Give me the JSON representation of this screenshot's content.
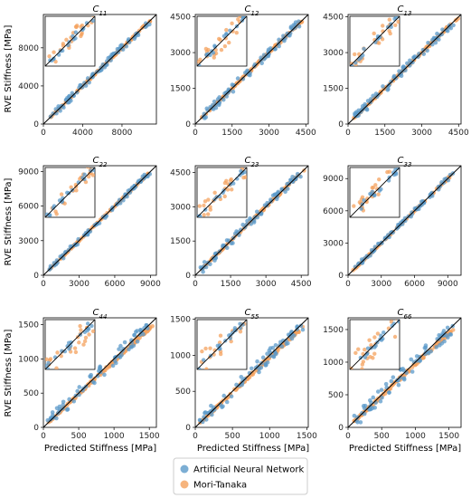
{
  "figure": {
    "ylabel": "RVE Stiffness [MPa]",
    "xlabel": "Predicted Stiffness [MPa]"
  },
  "legend": {
    "placement": "bottom-center",
    "entries": [
      {
        "label": "Artificial Neural Network",
        "color": "#5b9ac9"
      },
      {
        "label": "Mori-Tanaka",
        "color": "#f4a15d"
      }
    ]
  },
  "chart_data": [
    {
      "type": "scatter",
      "title": "C",
      "sub": "11",
      "lim": [
        0,
        11500
      ],
      "ticks": [
        0,
        4000,
        8000
      ],
      "series": [
        "Artificial Neural Network",
        "Mori-Tanaka"
      ],
      "inset": true
    },
    {
      "type": "scatter",
      "title": "C",
      "sub": "12",
      "lim": [
        0,
        4600
      ],
      "ticks": [
        0,
        1500,
        3000,
        4500
      ],
      "series": [
        "Artificial Neural Network",
        "Mori-Tanaka"
      ],
      "inset": true
    },
    {
      "type": "scatter",
      "title": "C",
      "sub": "13",
      "lim": [
        0,
        4600
      ],
      "ticks": [
        0,
        1500,
        3000,
        4500
      ],
      "series": [
        "Artificial Neural Network",
        "Mori-Tanaka"
      ],
      "inset": true
    },
    {
      "type": "scatter",
      "title": "C",
      "sub": "22",
      "lim": [
        0,
        9500
      ],
      "ticks": [
        0,
        3000,
        6000,
        9000
      ],
      "series": [
        "Artificial Neural Network",
        "Mori-Tanaka"
      ],
      "inset": true
    },
    {
      "type": "scatter",
      "title": "C",
      "sub": "23",
      "lim": [
        0,
        4800
      ],
      "ticks": [
        0,
        1500,
        3000,
        4500
      ],
      "series": [
        "Artificial Neural Network",
        "Mori-Tanaka"
      ],
      "inset": true
    },
    {
      "type": "scatter",
      "title": "C",
      "sub": "33",
      "lim": [
        0,
        10200
      ],
      "ticks": [
        0,
        3000,
        6000,
        9000
      ],
      "series": [
        "Artificial Neural Network",
        "Mori-Tanaka"
      ],
      "inset": true
    },
    {
      "type": "scatter",
      "title": "C",
      "sub": "44",
      "lim": [
        0,
        1600
      ],
      "ticks": [
        0,
        500,
        1000,
        1500
      ],
      "series": [
        "Artificial Neural Network",
        "Mori-Tanaka"
      ],
      "inset": true
    },
    {
      "type": "scatter",
      "title": "C",
      "sub": "55",
      "lim": [
        0,
        1520
      ],
      "ticks": [
        0,
        500,
        1000,
        1500
      ],
      "series": [
        "Artificial Neural Network",
        "Mori-Tanaka"
      ],
      "inset": true
    },
    {
      "type": "scatter",
      "title": "C",
      "sub": "66",
      "lim": [
        0,
        1680
      ],
      "ticks": [
        0,
        500,
        1000,
        1500
      ],
      "series": [
        "Artificial Neural Network",
        "Mori-Tanaka"
      ],
      "inset": true
    }
  ]
}
